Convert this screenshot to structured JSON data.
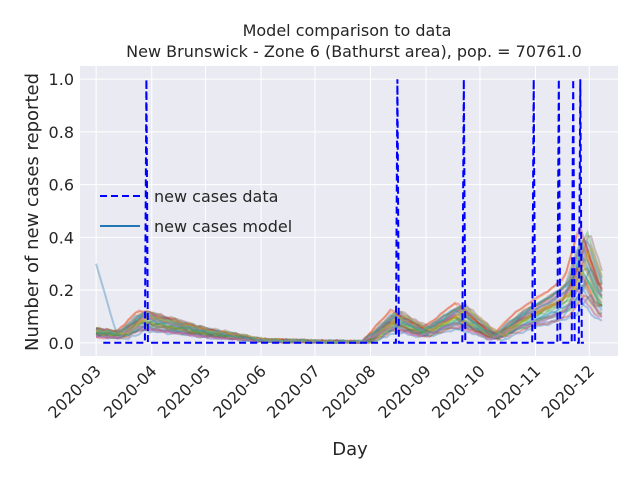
{
  "chart_data": {
    "type": "line",
    "title": "Model comparison to data",
    "subtitle": "New Brunswick - Zone 6 (Bathurst area), pop. = 70761.0",
    "xlabel": "Day",
    "ylabel": "Number of new cases reported",
    "xlim": [
      "2020-02-21",
      "2020-12-17"
    ],
    "ylim": [
      -0.05,
      1.05
    ],
    "x_ticks": [
      "2020-03",
      "2020-04",
      "2020-05",
      "2020-06",
      "2020-07",
      "2020-08",
      "2020-09",
      "2020-10",
      "2020-11",
      "2020-12"
    ],
    "y_ticks": [
      "0.0",
      "0.2",
      "0.4",
      "0.6",
      "0.8",
      "1.0"
    ],
    "grid": true,
    "legend_position": "center-left",
    "series": [
      {
        "name": "new cases data",
        "style": "dashed",
        "color": "#0000ff",
        "x_start": "2020-03-05",
        "x_end": "2020-11-28",
        "spikes": [
          {
            "date": "2020-03-29",
            "value": 1.0
          },
          {
            "date": "2020-08-16",
            "value": 1.0
          },
          {
            "date": "2020-09-22",
            "value": 1.0
          },
          {
            "date": "2020-10-31",
            "value": 1.0
          },
          {
            "date": "2020-11-14",
            "value": 1.0
          },
          {
            "date": "2020-11-22",
            "value": 1.0
          },
          {
            "date": "2020-11-26",
            "value": 1.0
          }
        ]
      },
      {
        "name": "new cases model",
        "style": "solid",
        "color": "#1f77b4",
        "x": [
          "2020-03-01",
          "2020-03-15",
          "2020-03-27",
          "2020-04-10",
          "2020-05-01",
          "2020-06-01",
          "2020-07-01",
          "2020-07-30",
          "2020-08-15",
          "2020-09-01",
          "2020-09-20",
          "2020-10-10",
          "2020-10-25",
          "2020-11-10",
          "2020-11-20",
          "2020-11-28",
          "2020-12-08"
        ],
        "y": [
          0.04,
          0.03,
          0.09,
          0.07,
          0.04,
          0.01,
          0.005,
          0.003,
          0.09,
          0.04,
          0.11,
          0.02,
          0.09,
          0.14,
          0.18,
          0.32,
          0.16
        ]
      }
    ],
    "ensemble_colors": [
      "#1f77b4",
      "#ff7f0e",
      "#2ca02c",
      "#d62728",
      "#9467bd",
      "#8c564b",
      "#e377c2",
      "#7f7f7f",
      "#bcbd22",
      "#17becf"
    ],
    "ensemble_count": 40
  }
}
